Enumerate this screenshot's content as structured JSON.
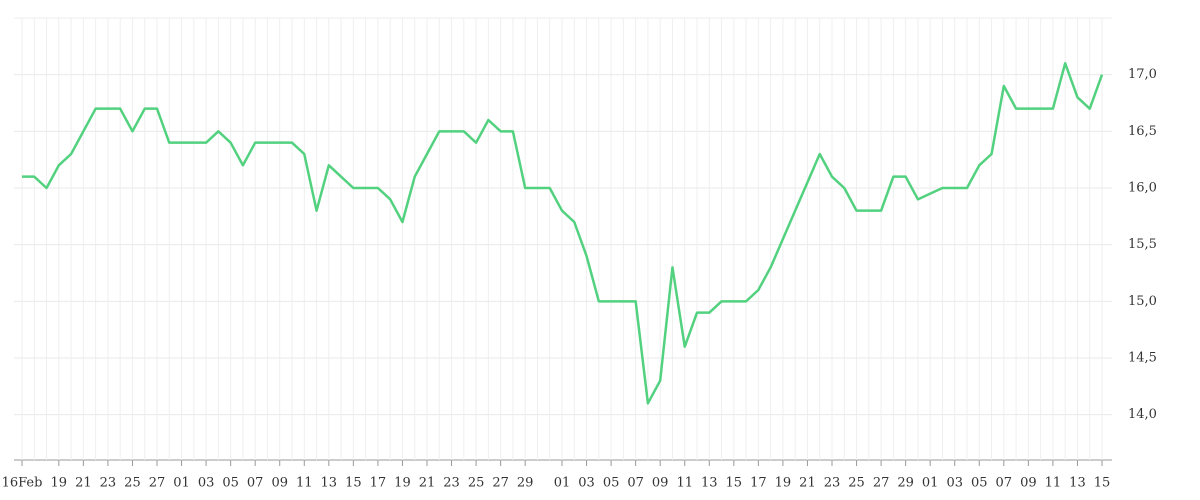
{
  "chart_data": {
    "type": "line",
    "categories": [
      "16Feb",
      null,
      null,
      "19",
      null,
      "21",
      null,
      "23",
      null,
      "25",
      null,
      "27",
      null,
      "01",
      null,
      "03",
      null,
      "05",
      null,
      "07",
      null,
      "09",
      null,
      "11",
      null,
      "13",
      null,
      "15",
      null,
      "17",
      null,
      "19",
      null,
      "21",
      null,
      "23",
      null,
      "25",
      null,
      "27",
      null,
      "29",
      null,
      null,
      "01",
      null,
      "03",
      null,
      "05",
      null,
      "07",
      null,
      "09",
      null,
      "11",
      null,
      "13",
      null,
      "15",
      null,
      "17",
      null,
      "19",
      null,
      "21",
      null,
      "23",
      null,
      "25",
      null,
      "27",
      null,
      "29",
      null,
      "01",
      null,
      "03",
      null,
      "05",
      null,
      "07",
      null,
      "09",
      null,
      "11",
      null,
      "13",
      null,
      "15"
    ],
    "values": [
      16.1,
      16.1,
      16.0,
      16.2,
      16.3,
      16.5,
      16.7,
      16.7,
      16.7,
      16.5,
      16.7,
      16.7,
      16.4,
      16.4,
      16.4,
      16.4,
      16.5,
      16.4,
      16.2,
      16.4,
      16.4,
      16.4,
      16.4,
      16.3,
      15.8,
      16.2,
      16.1,
      16.0,
      16.0,
      16.0,
      15.9,
      15.7,
      16.1,
      16.3,
      16.5,
      16.5,
      16.5,
      16.4,
      16.6,
      16.5,
      16.5,
      16.0,
      16.0,
      16.0,
      15.8,
      15.7,
      15.4,
      15.0,
      15.0,
      15.0,
      15.0,
      14.1,
      14.3,
      15.3,
      14.6,
      14.9,
      14.9,
      15.0,
      15.0,
      15.0,
      15.1,
      15.3,
      15.55,
      15.8,
      16.05,
      16.3,
      16.1,
      16.0,
      15.8,
      15.8,
      15.8,
      16.1,
      16.1,
      15.9,
      15.95,
      16.0,
      16.0,
      16.0,
      16.2,
      16.3,
      16.9,
      16.7,
      16.7,
      16.7,
      16.7,
      17.1,
      16.8,
      16.7,
      17.0
    ],
    "color": "#52d17f",
    "ylim": [
      13.6,
      17.5
    ],
    "yticks": [
      {
        "value": 14,
        "label": "14,0"
      },
      {
        "value": 14.5,
        "label": "14,5"
      },
      {
        "value": 15,
        "label": "15,0"
      },
      {
        "value": 15.5,
        "label": "15,5"
      },
      {
        "value": 16,
        "label": "16,0"
      },
      {
        "value": 16.5,
        "label": "16,5"
      },
      {
        "value": 17,
        "label": "17,0"
      }
    ],
    "grid": true
  }
}
